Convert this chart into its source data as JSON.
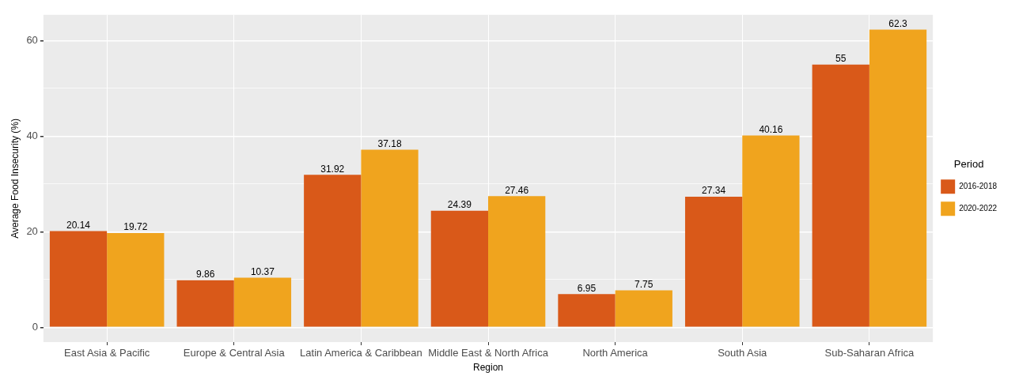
{
  "chart_data": {
    "type": "bar",
    "xlabel": "Region",
    "ylabel": "Average Food Insecurity (%)",
    "legend_title": "Period",
    "categories": [
      "East Asia & Pacific",
      "Europe & Central Asia",
      "Latin America & Caribbean",
      "Middle East & North Africa",
      "North America",
      "South Asia",
      "Sub-Saharan Africa"
    ],
    "series": [
      {
        "name": "2016-2018",
        "color": "#d95919",
        "values": [
          20.14,
          9.86,
          31.92,
          24.39,
          6.95,
          27.34,
          55
        ]
      },
      {
        "name": "2020-2022",
        "color": "#f0a41e",
        "values": [
          19.72,
          10.37,
          37.18,
          27.46,
          7.75,
          40.16,
          62.3
        ]
      }
    ],
    "ylim": [
      -3.1,
      65.4
    ],
    "yticks": [
      0,
      {
        "value": 10,
        "label": null
      },
      20,
      {
        "value": 30,
        "label": null
      },
      40,
      {
        "value": 50,
        "label": null
      },
      60
    ],
    "grid": true,
    "legend": "right",
    "data_labels": true
  }
}
